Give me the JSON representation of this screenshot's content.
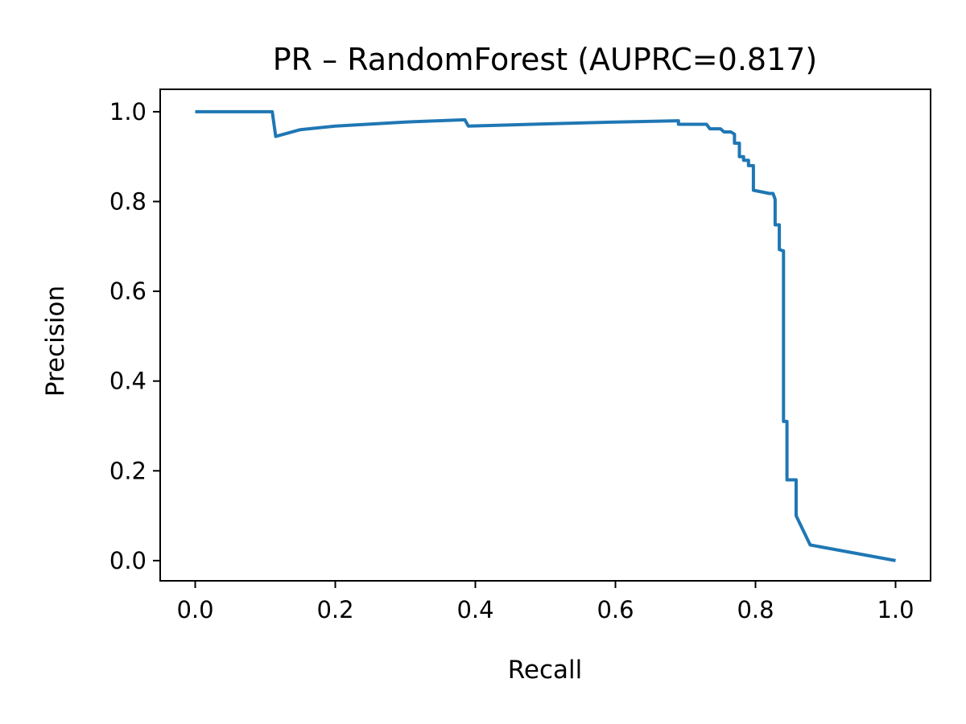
{
  "chart_data": {
    "type": "line",
    "title": "PR – RandomForest (AUPRC=0.817)",
    "xlabel": "Recall",
    "ylabel": "Precision",
    "xlim": [
      -0.05,
      1.05
    ],
    "ylim": [
      -0.045,
      1.05
    ],
    "xticks": [
      0.0,
      0.2,
      0.4,
      0.6,
      0.8,
      1.0
    ],
    "xtick_labels": [
      "0.0",
      "0.2",
      "0.4",
      "0.6",
      "0.8",
      "1.0"
    ],
    "yticks": [
      0.0,
      0.2,
      0.4,
      0.6,
      0.8,
      1.0
    ],
    "ytick_labels": [
      "0.0",
      "0.2",
      "0.4",
      "0.6",
      "0.8",
      "1.0"
    ],
    "grid": false,
    "legend": "none",
    "series": [
      {
        "color": "#1f77b4",
        "x": [
          0.0,
          0.11,
          0.115,
          0.15,
          0.2,
          0.3,
          0.385,
          0.39,
          0.5,
          0.6,
          0.69,
          0.69,
          0.73,
          0.735,
          0.75,
          0.755,
          0.765,
          0.77,
          0.77,
          0.777,
          0.777,
          0.783,
          0.783,
          0.79,
          0.79,
          0.797,
          0.797,
          0.82,
          0.825,
          0.828,
          0.828,
          0.834,
          0.834,
          0.84,
          0.84,
          0.845,
          0.845,
          0.858,
          0.858,
          0.878,
          1.0
        ],
        "y": [
          1.0,
          1.0,
          0.945,
          0.96,
          0.968,
          0.977,
          0.982,
          0.968,
          0.973,
          0.977,
          0.98,
          0.972,
          0.972,
          0.962,
          0.962,
          0.955,
          0.955,
          0.95,
          0.93,
          0.93,
          0.9,
          0.9,
          0.892,
          0.892,
          0.88,
          0.88,
          0.825,
          0.818,
          0.818,
          0.805,
          0.748,
          0.748,
          0.693,
          0.69,
          0.31,
          0.31,
          0.18,
          0.18,
          0.1,
          0.035,
          0.0
        ]
      }
    ]
  }
}
